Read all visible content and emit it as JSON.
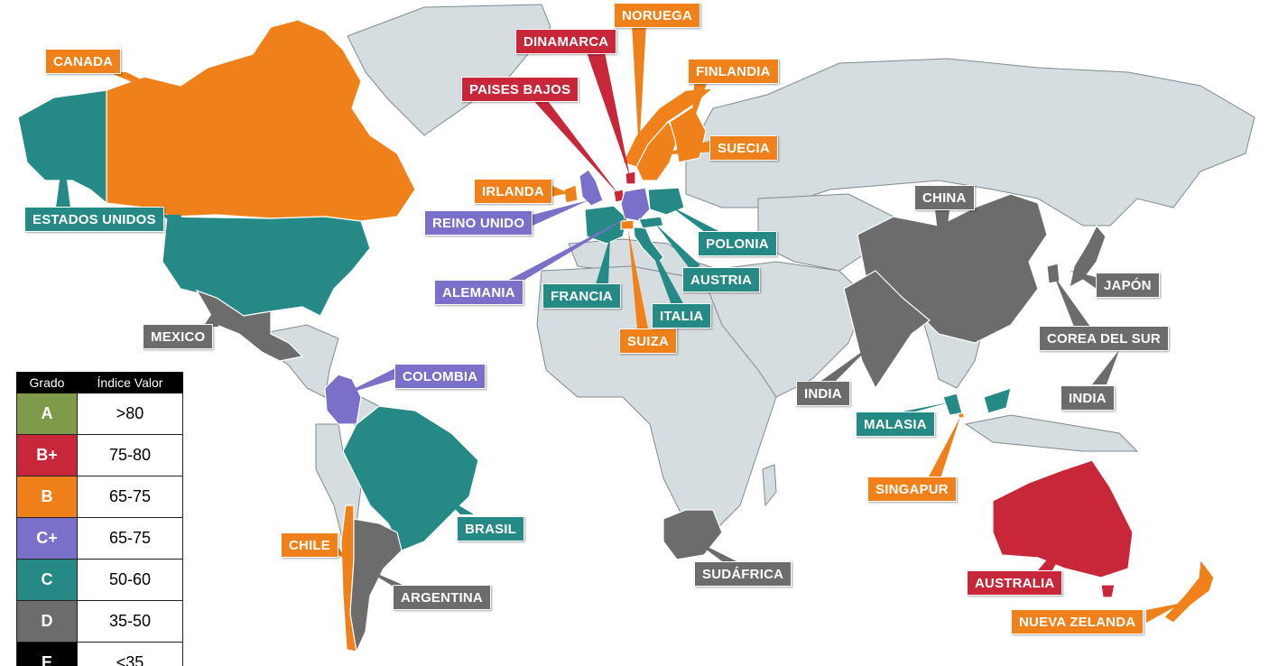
{
  "colors": {
    "A": "#7e9a4a",
    "B+": "#c8273a",
    "B": "#f08019",
    "C+": "#7a6fc9",
    "C": "#258a86",
    "D": "#6c6c6c",
    "E": "#000000",
    "land": "#d6dde0"
  },
  "legend": {
    "header_grade": "Grado",
    "header_value": "Índice Valor",
    "rows": [
      {
        "grade": "A",
        "value": ">80",
        "color": "#7e9a4a"
      },
      {
        "grade": "B+",
        "value": "75-80",
        "color": "#c8273a"
      },
      {
        "grade": "B",
        "value": "65-75",
        "color": "#f08019"
      },
      {
        "grade": "C+",
        "value": "65-75",
        "color": "#7a6fc9"
      },
      {
        "grade": "C",
        "value": "50-60",
        "color": "#258a86"
      },
      {
        "grade": "D",
        "value": "35-50",
        "color": "#6c6c6c"
      },
      {
        "grade": "E",
        "value": "<35",
        "color": "#000000"
      }
    ]
  },
  "countries": {
    "canada": {
      "label": "CANADA",
      "grade": "B"
    },
    "estados_unidos": {
      "label": "ESTADOS UNIDOS",
      "grade": "C"
    },
    "mexico": {
      "label": "MEXICO",
      "grade": "D"
    },
    "colombia": {
      "label": "COLOMBIA",
      "grade": "C+"
    },
    "brasil": {
      "label": "BRASIL",
      "grade": "C"
    },
    "chile": {
      "label": "CHILE",
      "grade": "B"
    },
    "argentina": {
      "label": "ARGENTINA",
      "grade": "D"
    },
    "irlanda": {
      "label": "IRLANDA",
      "grade": "B"
    },
    "reino_unido": {
      "label": "REINO UNIDO",
      "grade": "C+"
    },
    "alemania": {
      "label": "ALEMANIA",
      "grade": "C+"
    },
    "francia": {
      "label": "FRANCIA",
      "grade": "C"
    },
    "suiza": {
      "label": "SUIZA",
      "grade": "B"
    },
    "italia": {
      "label": "ITALIA",
      "grade": "C"
    },
    "austria": {
      "label": "AUSTRIA",
      "grade": "C"
    },
    "polonia": {
      "label": "POLONIA",
      "grade": "C"
    },
    "paises_bajos": {
      "label": "PAISES BAJOS",
      "grade": "B+"
    },
    "dinamarca": {
      "label": "DINAMARCA",
      "grade": "B+"
    },
    "noruega": {
      "label": "NORUEGA",
      "grade": "B"
    },
    "finlandia": {
      "label": "FINLANDIA",
      "grade": "B"
    },
    "suecia": {
      "label": "SUECIA",
      "grade": "B"
    },
    "china": {
      "label": "CHINA",
      "grade": "D"
    },
    "japon": {
      "label": "JAPÓN",
      "grade": "D"
    },
    "corea_del_sur": {
      "label": "COREA DEL SUR",
      "grade": "D"
    },
    "india": {
      "label": "INDIA",
      "grade": "D"
    },
    "indonesia_label": {
      "label": "INDIA",
      "grade": "D"
    },
    "malasia": {
      "label": "MALASIA",
      "grade": "C"
    },
    "singapur": {
      "label": "SINGAPUR",
      "grade": "B"
    },
    "sudafrica": {
      "label": "SUDÁFRICA",
      "grade": "D"
    },
    "australia": {
      "label": "AUSTRALIA",
      "grade": "B+"
    },
    "nueva_zelanda": {
      "label": "NUEVA ZELANDA",
      "grade": "B"
    }
  }
}
